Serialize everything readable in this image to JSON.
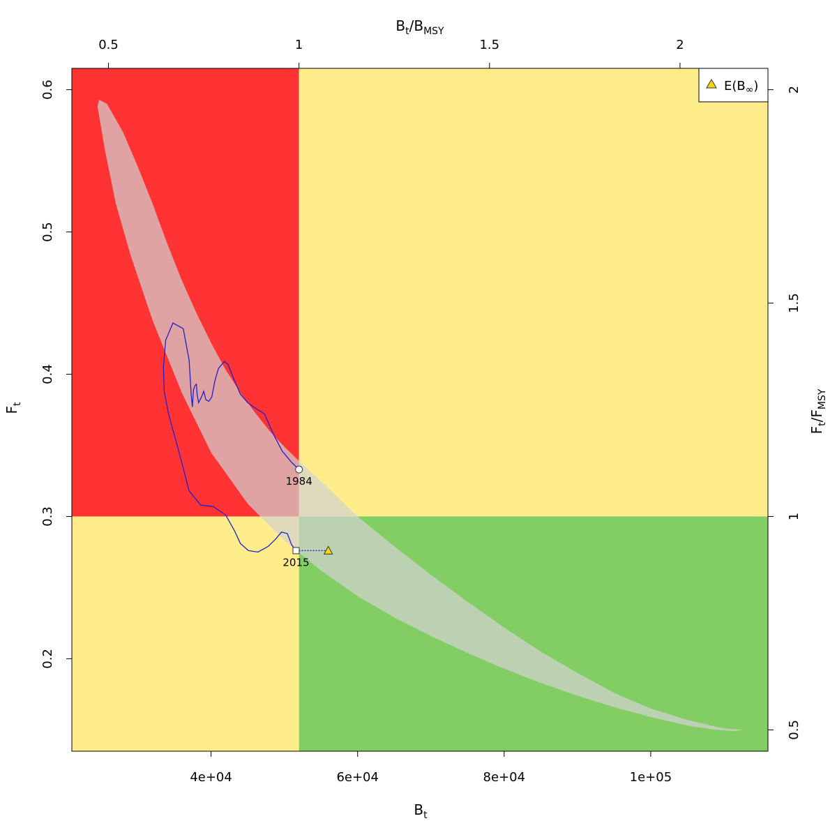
{
  "chart_data": {
    "type": "scatter",
    "title": "",
    "x_axis": {
      "label": "B",
      "label_sub": "t",
      "range": [
        21000,
        116000
      ],
      "ticks": [
        40000,
        60000,
        80000,
        100000
      ],
      "tick_labels": [
        "4e+04",
        "6e+04",
        "8e+04",
        "1e+05"
      ]
    },
    "y_axis": {
      "label": "F",
      "label_sub": "t",
      "range": [
        0.135,
        0.615
      ],
      "ticks": [
        0.2,
        0.3,
        0.4,
        0.5,
        0.6
      ],
      "tick_labels": [
        "0.2",
        "0.3",
        "0.4",
        "0.5",
        "0.6"
      ]
    },
    "top_axis": {
      "label_main1": "B",
      "label_sub1": "t",
      "label_slash": "/",
      "label_main2": "B",
      "label_sub2": "MSY",
      "ticks": [
        0.5,
        1,
        1.5,
        2
      ],
      "tick_labels": [
        "0.5",
        "1",
        "1.5",
        "2"
      ]
    },
    "right_axis": {
      "label_main1": "F",
      "label_sub1": "t",
      "label_slash": "/",
      "label_main2": "F",
      "label_sub2": "MSY",
      "ticks": [
        0.5,
        1,
        1.5,
        2
      ],
      "tick_labels": [
        "0.5",
        "1",
        "1.5",
        "2"
      ]
    },
    "reference": {
      "Bmsy": 52000,
      "Fmsy": 0.3
    },
    "zones": [
      {
        "name": "overfished-overfishing",
        "color": "#ff3333"
      },
      {
        "name": "healthy-overfishing",
        "color": "#ffec8b"
      },
      {
        "name": "overfished-no-overfishing",
        "color": "#ffec8b"
      },
      {
        "name": "healthy",
        "color": "#82cd64"
      }
    ],
    "confidence_region_color": "#d3d3d3",
    "confidence_region": [
      [
        24700,
        0.593
      ],
      [
        25800,
        0.59
      ],
      [
        28000,
        0.57
      ],
      [
        30000,
        0.546
      ],
      [
        32000,
        0.52
      ],
      [
        34000,
        0.492
      ],
      [
        36000,
        0.466
      ],
      [
        38000,
        0.443
      ],
      [
        40000,
        0.422
      ],
      [
        42000,
        0.403
      ],
      [
        44000,
        0.387
      ],
      [
        46000,
        0.373
      ],
      [
        48000,
        0.36
      ],
      [
        50000,
        0.349
      ],
      [
        52000,
        0.339
      ],
      [
        56000,
        0.32
      ],
      [
        60000,
        0.3
      ],
      [
        65000,
        0.279
      ],
      [
        70000,
        0.259
      ],
      [
        75000,
        0.24
      ],
      [
        80000,
        0.222
      ],
      [
        85000,
        0.205
      ],
      [
        90000,
        0.19
      ],
      [
        95000,
        0.176
      ],
      [
        100000,
        0.165
      ],
      [
        105000,
        0.157
      ],
      [
        110000,
        0.151
      ],
      [
        112500,
        0.15
      ],
      [
        111500,
        0.149
      ],
      [
        109000,
        0.15
      ],
      [
        105000,
        0.153
      ],
      [
        100000,
        0.159
      ],
      [
        95000,
        0.166
      ],
      [
        90000,
        0.174
      ],
      [
        85000,
        0.183
      ],
      [
        80000,
        0.193
      ],
      [
        75000,
        0.204
      ],
      [
        70000,
        0.216
      ],
      [
        65000,
        0.229
      ],
      [
        60000,
        0.244
      ],
      [
        55000,
        0.262
      ],
      [
        50000,
        0.283
      ],
      [
        45000,
        0.309
      ],
      [
        40000,
        0.345
      ],
      [
        36000,
        0.387
      ],
      [
        32000,
        0.438
      ],
      [
        29000,
        0.484
      ],
      [
        27000,
        0.52
      ],
      [
        25500,
        0.558
      ],
      [
        24500,
        0.588
      ],
      [
        24700,
        0.593
      ]
    ],
    "series": [
      {
        "name": "",
        "color": "#2020d0",
        "points": [
          [
            52000,
            0.333
          ],
          [
            51000,
            0.338
          ],
          [
            49700,
            0.346
          ],
          [
            48500,
            0.358
          ],
          [
            47300,
            0.372
          ],
          [
            45800,
            0.377
          ],
          [
            45000,
            0.38
          ],
          [
            44000,
            0.386
          ],
          [
            43000,
            0.398
          ],
          [
            42300,
            0.407
          ],
          [
            41800,
            0.409
          ],
          [
            41000,
            0.404
          ],
          [
            40500,
            0.395
          ],
          [
            40100,
            0.384
          ],
          [
            39700,
            0.381
          ],
          [
            39300,
            0.382
          ],
          [
            39000,
            0.388
          ],
          [
            38700,
            0.384
          ],
          [
            38300,
            0.38
          ],
          [
            38100,
            0.386
          ],
          [
            38000,
            0.393
          ],
          [
            37800,
            0.392
          ],
          [
            37600,
            0.389
          ],
          [
            37450,
            0.377
          ],
          [
            37300,
            0.385
          ],
          [
            37000,
            0.41
          ],
          [
            36200,
            0.432
          ],
          [
            34800,
            0.436
          ],
          [
            33800,
            0.424
          ],
          [
            33500,
            0.405
          ],
          [
            33600,
            0.388
          ],
          [
            34200,
            0.372
          ],
          [
            35000,
            0.357
          ],
          [
            36000,
            0.338
          ],
          [
            37000,
            0.318
          ],
          [
            38600,
            0.308
          ],
          [
            40300,
            0.307
          ],
          [
            42000,
            0.301
          ],
          [
            43200,
            0.29
          ],
          [
            44000,
            0.281
          ],
          [
            45100,
            0.276
          ],
          [
            46400,
            0.275
          ],
          [
            47800,
            0.279
          ],
          [
            48800,
            0.284
          ],
          [
            49600,
            0.289
          ],
          [
            50400,
            0.288
          ],
          [
            51000,
            0.28
          ],
          [
            51600,
            0.276
          ]
        ]
      }
    ],
    "start_point": {
      "x": 52000,
      "y": 0.333,
      "label": "1984"
    },
    "end_point": {
      "x": 51600,
      "y": 0.276,
      "label": "2015"
    },
    "expected_point": {
      "x": 56000,
      "y": 0.276,
      "color": "#ffd700"
    },
    "legend": {
      "position": "top-right",
      "items": [
        {
          "label_main": "E(B",
          "label_sub": "∞",
          "label_close": ")",
          "marker": "triangle",
          "color": "#ffd700"
        }
      ]
    }
  }
}
